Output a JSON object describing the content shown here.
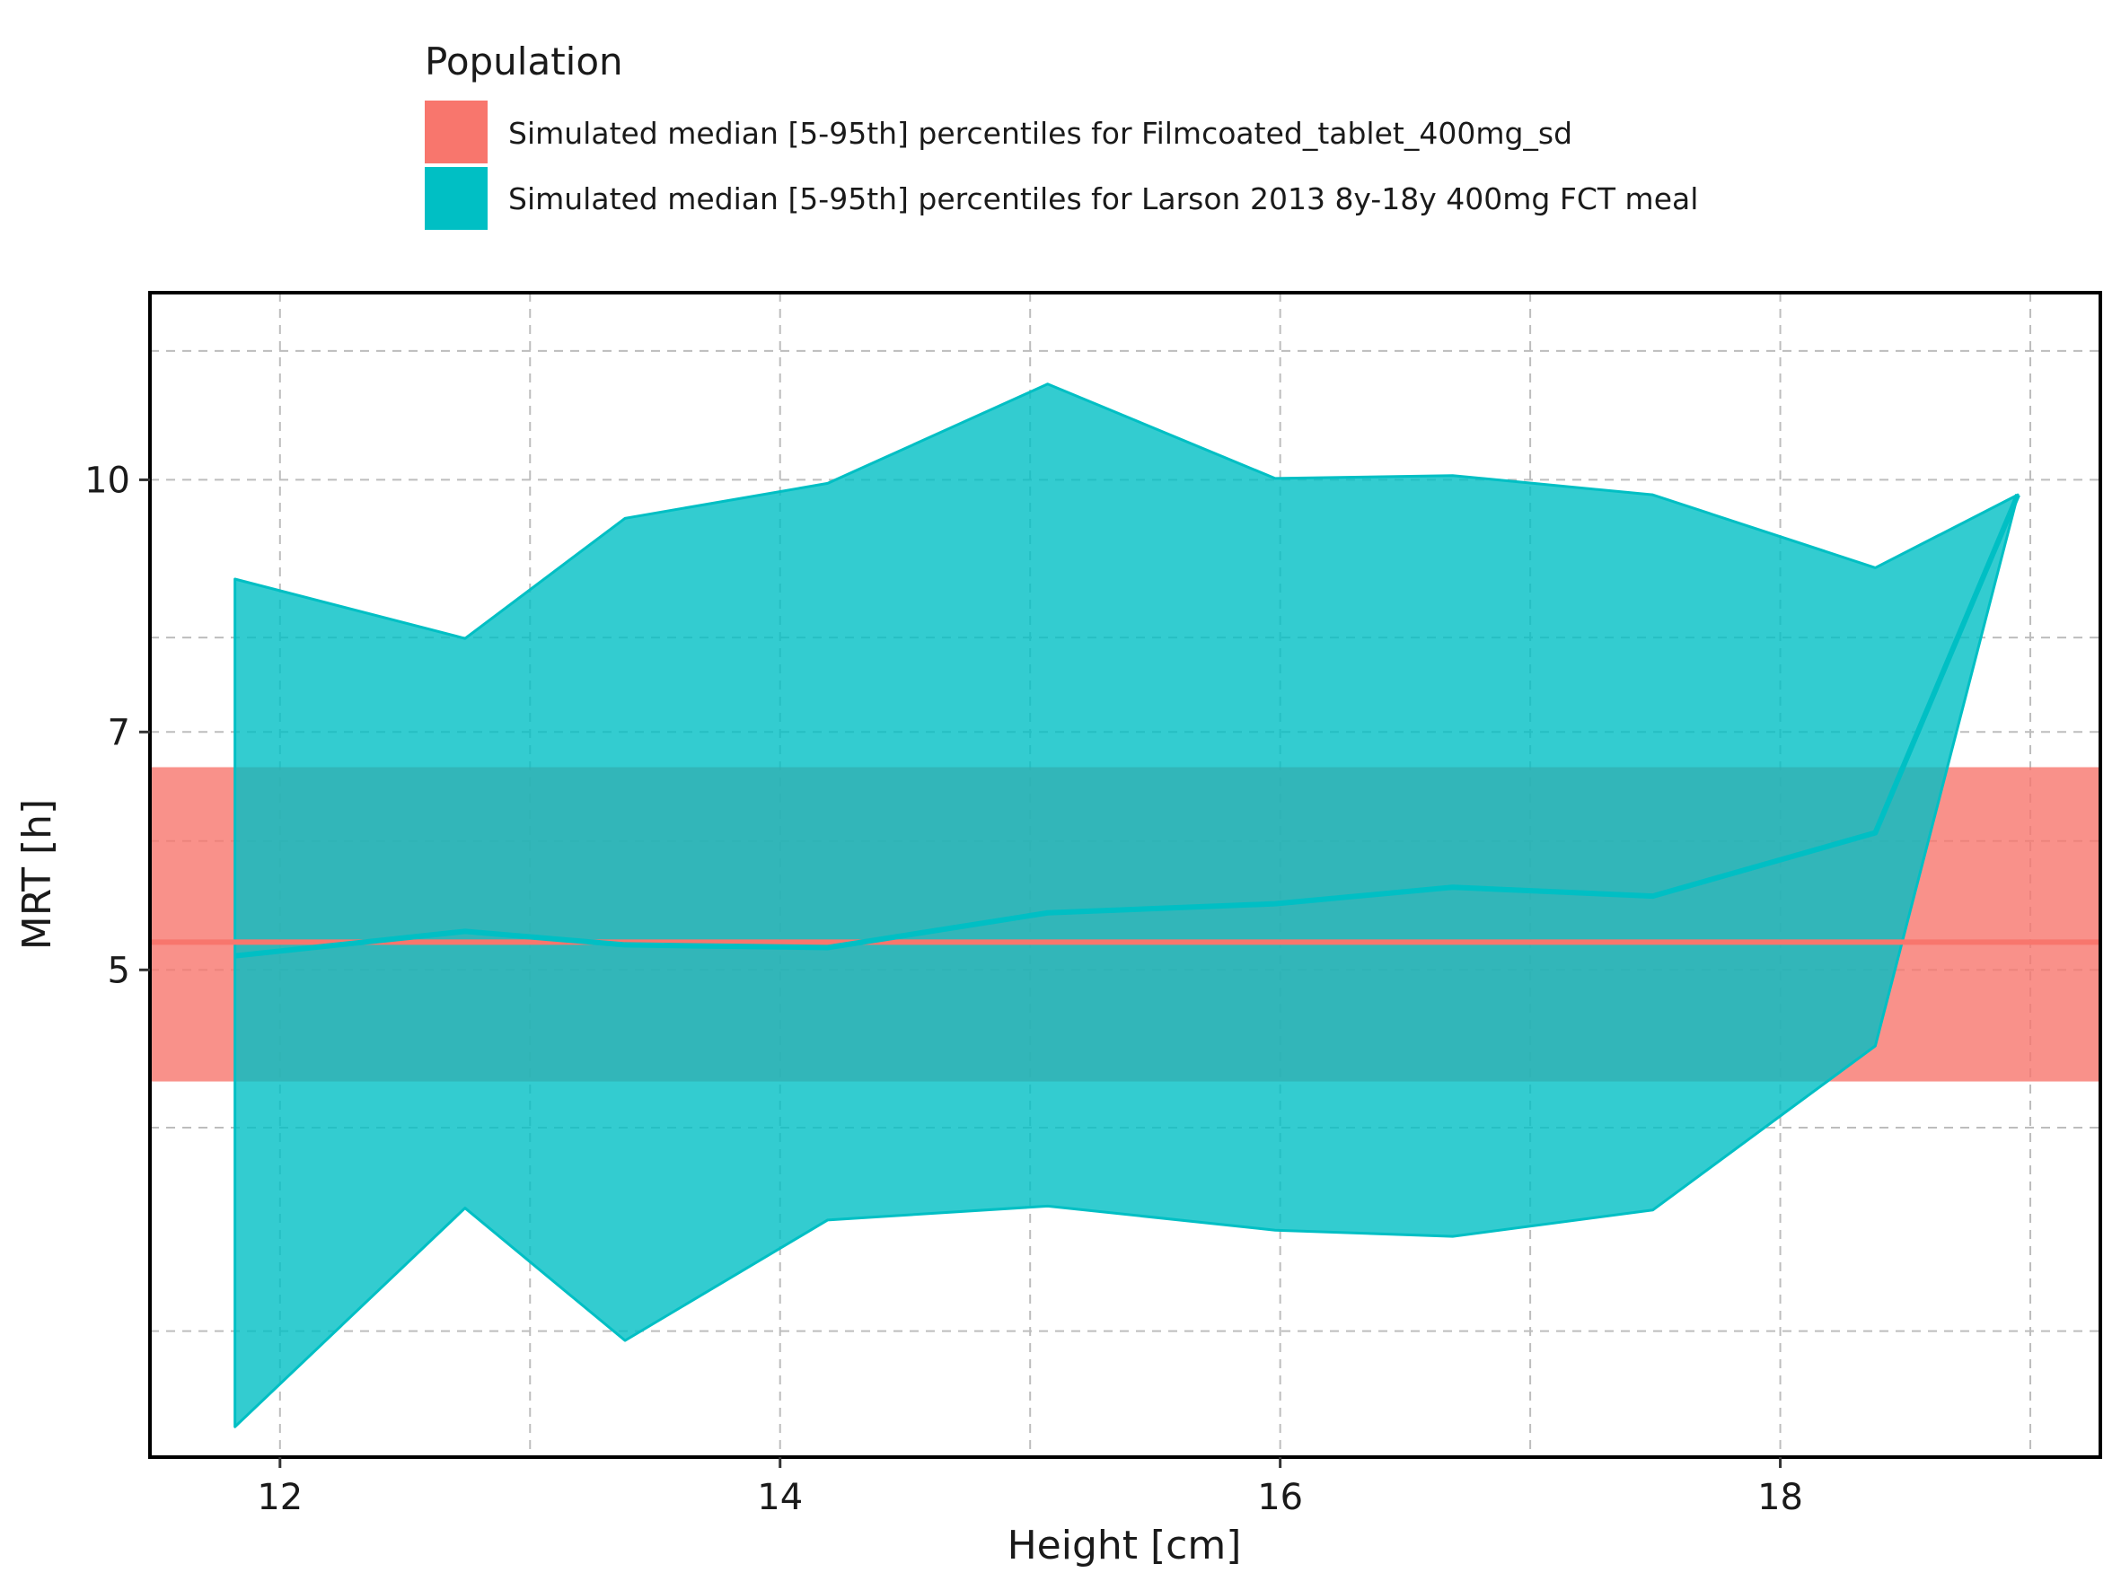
{
  "chart_data": {
    "type": "area",
    "xlabel": "Height [cm]",
    "ylabel": "MRT [h]",
    "xlim": [
      11.48,
      19.28
    ],
    "ylim": [
      2.51,
      13.03
    ],
    "y_scale": "log",
    "x_ticks": [
      12,
      14,
      16,
      18
    ],
    "x_minor_ticks": [
      13,
      15,
      17,
      19
    ],
    "y_ticks": [
      5,
      7,
      10
    ],
    "y_minor_ticks": [
      3,
      4,
      6,
      8,
      12
    ],
    "grid": true,
    "legend": {
      "title": "Population",
      "position": "top",
      "entries": [
        "Simulated median [5-95th] percentiles for Filmcoated_tablet_400mg_sd",
        "Simulated median [5-95th] percentiles for Larson 2013 8y-18y 400mg FCT meal"
      ]
    },
    "series": [
      {
        "name": "Simulated median [5-95th] percentiles for Filmcoated_tablet_400mg_sd",
        "color": "#F8766D",
        "kind": "constant_band",
        "median": 5.2,
        "lower": 4.27,
        "upper": 6.66
      },
      {
        "name": "Simulated median [5-95th] percentiles for Larson 2013 8y-18y 400mg FCT meal",
        "color": "#00BFC4",
        "kind": "band",
        "x": [
          11.82,
          12.74,
          13.38,
          14.19,
          15.07,
          15.98,
          16.69,
          17.49,
          18.38,
          18.95
        ],
        "median": [
          5.1,
          5.28,
          5.18,
          5.16,
          5.42,
          5.49,
          5.62,
          5.55,
          6.07,
          9.79
        ],
        "lower": [
          2.62,
          3.57,
          2.96,
          3.51,
          3.58,
          3.46,
          3.43,
          3.56,
          4.49,
          9.79
        ],
        "upper": [
          8.69,
          7.99,
          9.47,
          9.95,
          11.45,
          10.02,
          10.06,
          9.79,
          8.83,
          9.79
        ]
      }
    ]
  }
}
